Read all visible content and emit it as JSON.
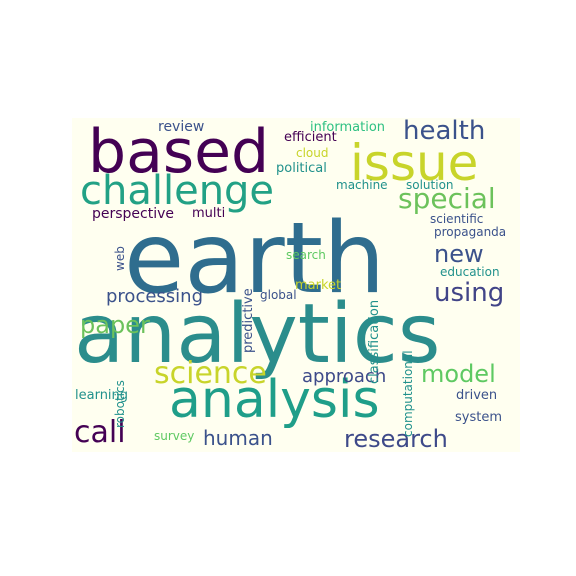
{
  "palette": {
    "background": "#fffff0",
    "purple": "#440154",
    "indigo": "#3b528b",
    "teal": "#21918c",
    "green": "#5ec962",
    "yellow": "#c8d42a"
  },
  "words": [
    {
      "text": "earth",
      "color": "#2f6d8e"
    },
    {
      "text": "analytics",
      "color": "#2b8d8c"
    },
    {
      "text": "based",
      "color": "#440154"
    },
    {
      "text": "issue",
      "color": "#c8d42a"
    },
    {
      "text": "analysis",
      "color": "#1f9e89"
    },
    {
      "text": "challenge",
      "color": "#22a185"
    },
    {
      "text": "science",
      "color": "#c8d42a"
    },
    {
      "text": "health",
      "color": "#3b528b"
    },
    {
      "text": "special",
      "color": "#6cc25b"
    },
    {
      "text": "call",
      "color": "#440154"
    },
    {
      "text": "research",
      "color": "#3e4a89"
    },
    {
      "text": "model",
      "color": "#5ec962"
    },
    {
      "text": "using",
      "color": "#414487"
    },
    {
      "text": "new",
      "color": "#3b528b"
    },
    {
      "text": "paper",
      "color": "#6cc25b"
    },
    {
      "text": "processing",
      "color": "#3b528b"
    },
    {
      "text": "human",
      "color": "#3b528b"
    },
    {
      "text": "approach",
      "color": "#3e4a89"
    },
    {
      "text": "review",
      "color": "#3b528b"
    },
    {
      "text": "information",
      "color": "#2ec082"
    },
    {
      "text": "efficient",
      "color": "#440154"
    },
    {
      "text": "cloud",
      "color": "#c8d42a"
    },
    {
      "text": "political",
      "color": "#21918c"
    },
    {
      "text": "machine",
      "color": "#21918c"
    },
    {
      "text": "solution",
      "color": "#21918c"
    },
    {
      "text": "perspective",
      "color": "#440154"
    },
    {
      "text": "multi",
      "color": "#440154"
    },
    {
      "text": "scientific",
      "color": "#3b528b"
    },
    {
      "text": "propaganda",
      "color": "#3b528b"
    },
    {
      "text": "web",
      "color": "#3b528b"
    },
    {
      "text": "predictive",
      "color": "#3b528b"
    },
    {
      "text": "classification",
      "color": "#21918c"
    },
    {
      "text": "search",
      "color": "#5ec962"
    },
    {
      "text": "computational",
      "color": "#21918c"
    },
    {
      "text": "education",
      "color": "#21918c"
    },
    {
      "text": "market",
      "color": "#c8d42a"
    },
    {
      "text": "global",
      "color": "#3b528b"
    },
    {
      "text": "robotics",
      "color": "#21918c"
    },
    {
      "text": "learning",
      "color": "#21918c"
    },
    {
      "text": "driven",
      "color": "#3b528b"
    },
    {
      "text": "system",
      "color": "#3b528b"
    },
    {
      "text": "survey",
      "color": "#5ec962"
    }
  ]
}
